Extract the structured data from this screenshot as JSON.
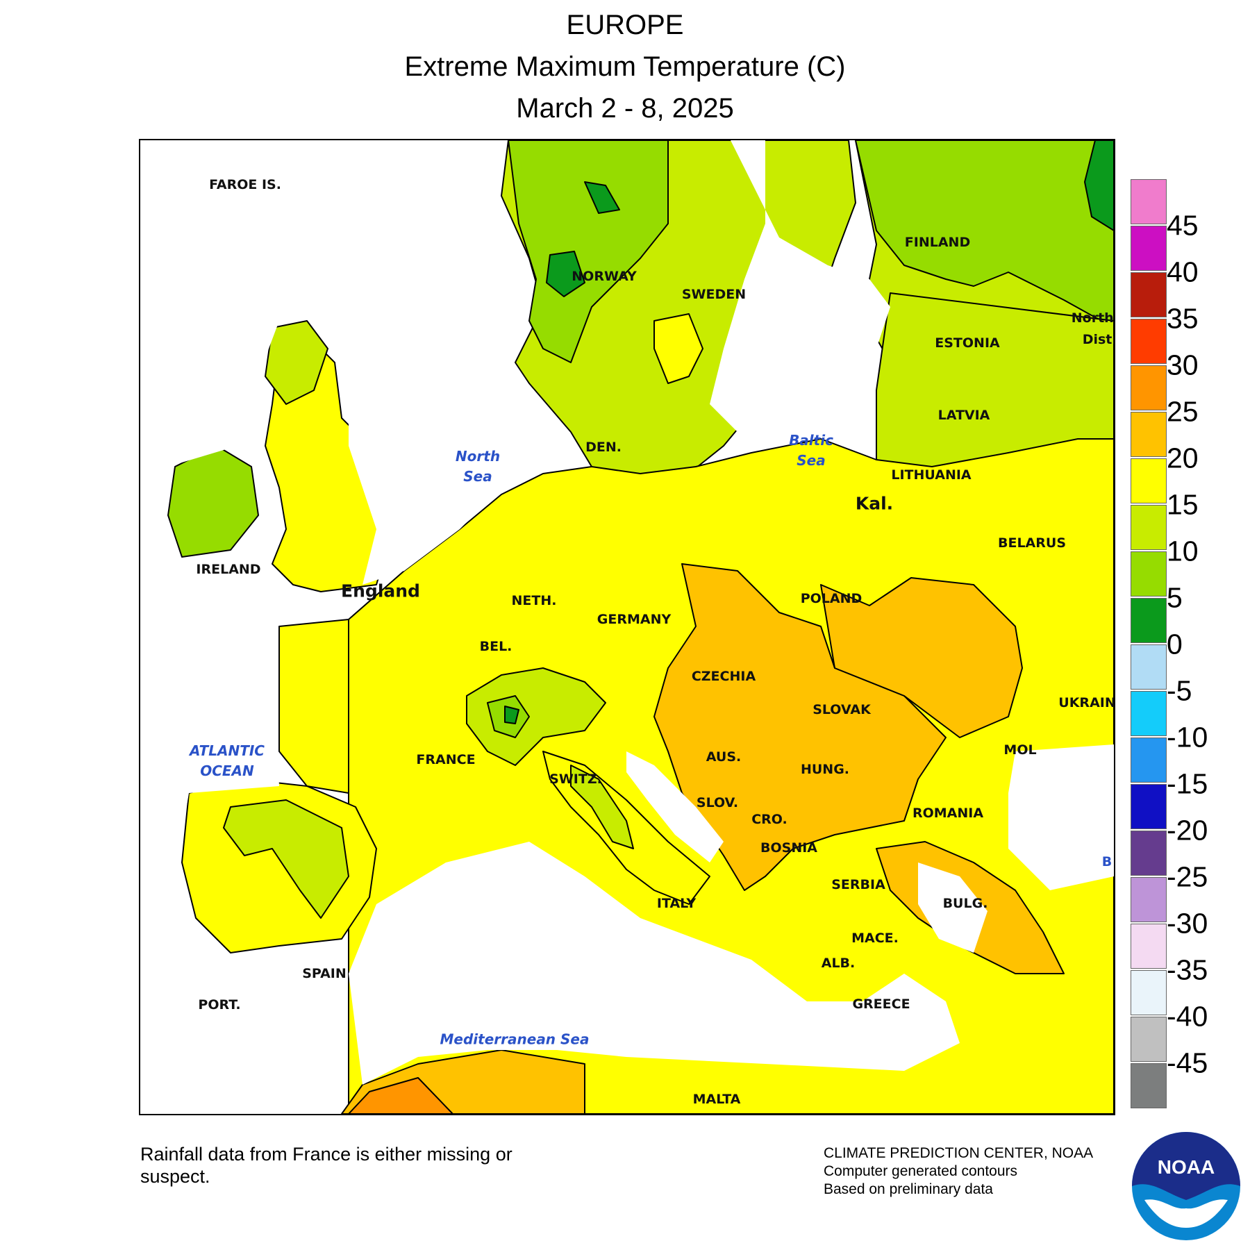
{
  "header": {
    "region": "EUROPE",
    "variable": "Extreme Maximum Temperature (C)",
    "period": "March 2 - 8, 2025"
  },
  "legend": {
    "units": "C",
    "ticks": [
      "45",
      "40",
      "35",
      "30",
      "25",
      "20",
      "15",
      "10",
      "5",
      "0",
      "-5",
      "-10",
      "-15",
      "-20",
      "-25",
      "-30",
      "-35",
      "-40",
      "-45"
    ],
    "colors": [
      "#f07ccc",
      "#cc0fc2",
      "#b81d0c",
      "#ff3c00",
      "#ff9500",
      "#ffc200",
      "#ffff00",
      "#c8ec00",
      "#96dc00",
      "#0b9a1c",
      "#b1dcf5",
      "#14ccfa",
      "#2596f0",
      "#1010c4",
      "#653c8e",
      "#be94d8",
      "#f4daf2",
      "#eaf4fa",
      "#c0c0c0",
      "#7c7e7e"
    ]
  },
  "map": {
    "countries": [
      {
        "label": "FAROE IS."
      },
      {
        "label": "NORWAY"
      },
      {
        "label": "SWEDEN"
      },
      {
        "label": "FINLAND"
      },
      {
        "label": "ESTONIA"
      },
      {
        "label": "LATVIA"
      },
      {
        "label": "LITHUANIA"
      },
      {
        "label": "Kal."
      },
      {
        "label": "BELARUS"
      },
      {
        "label": "DEN."
      },
      {
        "label": "IRELAND"
      },
      {
        "label": "England"
      },
      {
        "label": "NETH."
      },
      {
        "label": "BEL."
      },
      {
        "label": "GERMANY"
      },
      {
        "label": "POLAND"
      },
      {
        "label": "CZECHIA"
      },
      {
        "label": "SLOVAK"
      },
      {
        "label": "UKRAINE"
      },
      {
        "label": "AUS."
      },
      {
        "label": "HUNG."
      },
      {
        "label": "MOL"
      },
      {
        "label": "FRANCE"
      },
      {
        "label": "SWITZ."
      },
      {
        "label": "SLOV."
      },
      {
        "label": "CRO."
      },
      {
        "label": "ROMANIA"
      },
      {
        "label": "BOSNIA"
      },
      {
        "label": "SERBIA"
      },
      {
        "label": "BULG."
      },
      {
        "label": "ITALY"
      },
      {
        "label": "MACE."
      },
      {
        "label": "ALB."
      },
      {
        "label": "GREECE"
      },
      {
        "label": "SPAIN"
      },
      {
        "label": "PORT."
      },
      {
        "label": "MALTA"
      },
      {
        "label": "Northw"
      },
      {
        "label": "Distri"
      },
      {
        "label": "B"
      }
    ],
    "seas": [
      {
        "line1": "North",
        "line2": "Sea"
      },
      {
        "line1": "Baltic",
        "line2": "Sea"
      },
      {
        "line1": "ATLANTIC",
        "line2": "OCEAN"
      },
      {
        "line1": "Mediterranean Sea",
        "line2": ""
      }
    ]
  },
  "footer": {
    "note_line1": "Rainfall data from France is either missing or",
    "note_line2": "suspect.",
    "credit_line1": "CLIMATE PREDICTION CENTER, NOAA",
    "credit_line2": "Computer generated contours",
    "credit_line3": "Based on preliminary data",
    "logo_text": "NOAA"
  }
}
